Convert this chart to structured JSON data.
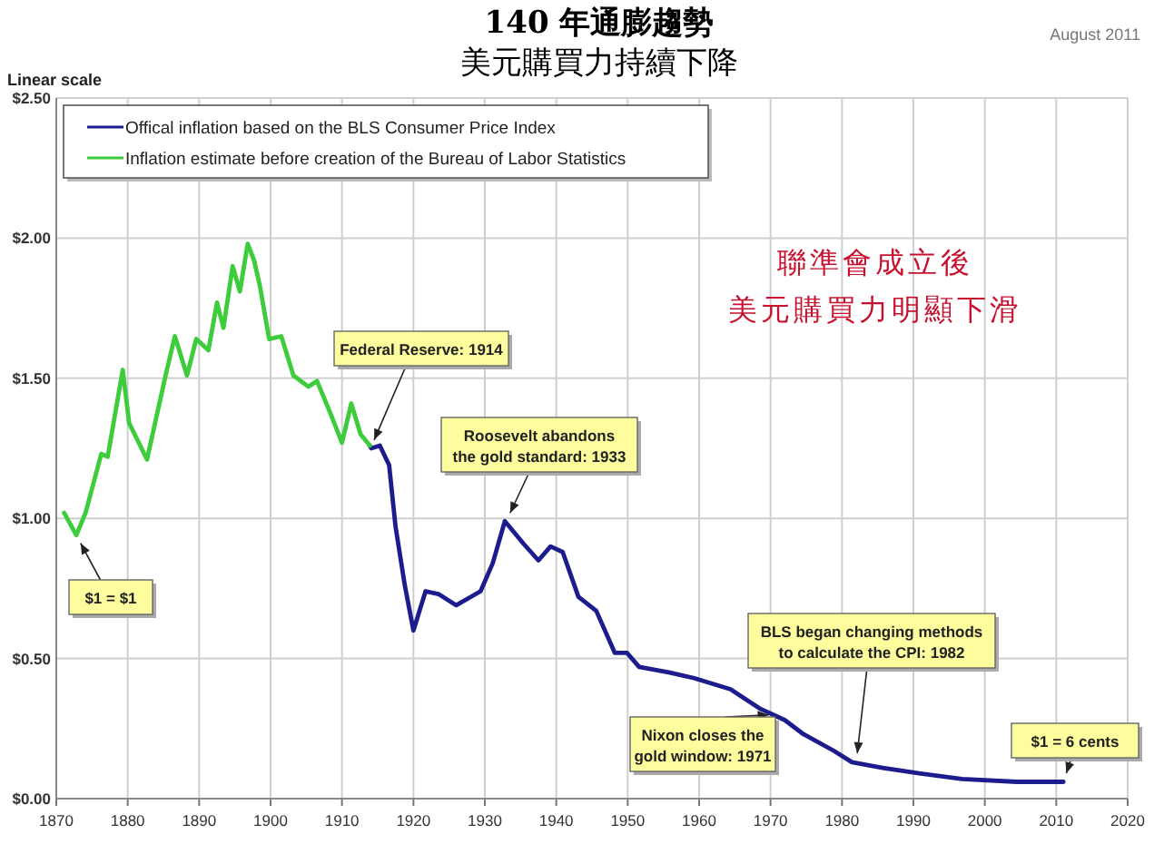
{
  "chart_data": {
    "type": "line",
    "title": "140 年通膨趨勢",
    "subtitle": "美元購買力持續下降",
    "xlim": [
      1870,
      2020
    ],
    "xticks": [
      1870,
      1880,
      1890,
      1900,
      1910,
      1920,
      1930,
      1940,
      1950,
      1960,
      1970,
      1980,
      1990,
      2000,
      2010,
      2020
    ],
    "ylim": [
      0,
      2.5
    ],
    "yticks": [
      {
        "value": 0,
        "label": "$0.00"
      },
      {
        "value": 0.5,
        "label": "$0.50"
      },
      {
        "value": 1,
        "label": "$1.00"
      },
      {
        "value": 1.5,
        "label": "$1.50"
      },
      {
        "value": 2,
        "label": "$2.00"
      },
      {
        "value": 2.5,
        "label": "$2.50"
      }
    ],
    "grid": true,
    "legend": "top left",
    "series": [
      {
        "name": "Offical inflation based on the BLS Consumer Price Index",
        "color": "#1c1c8f",
        "x": [
          1913.9,
          1914.1,
          1915.3,
          1916.6,
          1917.5,
          1918.8,
          1920.0,
          1921.7,
          1923.5,
          1926.0,
          1929.4,
          1931.1,
          1932.8,
          1935.4,
          1937.5,
          1939.2,
          1940.9,
          1943.1,
          1945.6,
          1948.2,
          1949.9,
          1951.6,
          1955.9,
          1959.3,
          1964.4,
          1968.6,
          1972.0,
          1974.6,
          1978.9,
          1981.4,
          1985.7,
          1990.8,
          1996.8,
          2004.5,
          2011.0
        ],
        "values": [
          1.26,
          1.25,
          1.26,
          1.19,
          0.97,
          0.76,
          0.6,
          0.74,
          0.73,
          0.69,
          0.74,
          0.84,
          0.99,
          0.91,
          0.85,
          0.9,
          0.88,
          0.72,
          0.67,
          0.52,
          0.52,
          0.47,
          0.45,
          0.43,
          0.39,
          0.32,
          0.28,
          0.23,
          0.17,
          0.13,
          0.11,
          0.09,
          0.07,
          0.06,
          0.06
        ]
      },
      {
        "name": "Inflation estimate before creation of the Bureau of Labor Statistics",
        "color": "#3ccc3c",
        "x": [
          1871.1,
          1872.8,
          1874.1,
          1876.3,
          1877.2,
          1879.3,
          1880.2,
          1882.7,
          1885.3,
          1886.6,
          1888.3,
          1889.6,
          1891.3,
          1892.5,
          1893.4,
          1894.7,
          1895.7,
          1896.8,
          1897.7,
          1898.5,
          1899.8,
          1901.5,
          1903.2,
          1905.3,
          1906.5,
          1908.3,
          1910.0,
          1911.3,
          1912.6,
          1913.9
        ],
        "values": [
          1.02,
          0.94,
          1.02,
          1.23,
          1.22,
          1.53,
          1.34,
          1.21,
          1.51,
          1.65,
          1.51,
          1.64,
          1.6,
          1.77,
          1.68,
          1.9,
          1.81,
          1.98,
          1.92,
          1.83,
          1.64,
          1.65,
          1.51,
          1.47,
          1.49,
          1.38,
          1.27,
          1.41,
          1.3,
          1.26
        ]
      }
    ],
    "annotations": [
      "Linear scale",
      "August 2011",
      "聯準會成立後",
      "美元購買力明顯下滑",
      {
        "text": "Federal Reserve: 1914",
        "x": 1914,
        "y": 1.25
      },
      {
        "text": "Roosevelt abandons\nthe gold standard: 1933",
        "x": 1933,
        "y": 0.99
      },
      {
        "text": "$1 = $1",
        "x": 1872.8,
        "y": 0.94
      },
      {
        "text": "Nixon closes the\ngold window: 1971",
        "x": 1971,
        "y": 0.3
      },
      {
        "text": "BLS began  changing methods\nto calculate the CPI: 1982",
        "x": 1982,
        "y": 0.13
      },
      {
        "text": "$1 = 6 cents",
        "x": 2011,
        "y": 0.06
      }
    ]
  }
}
